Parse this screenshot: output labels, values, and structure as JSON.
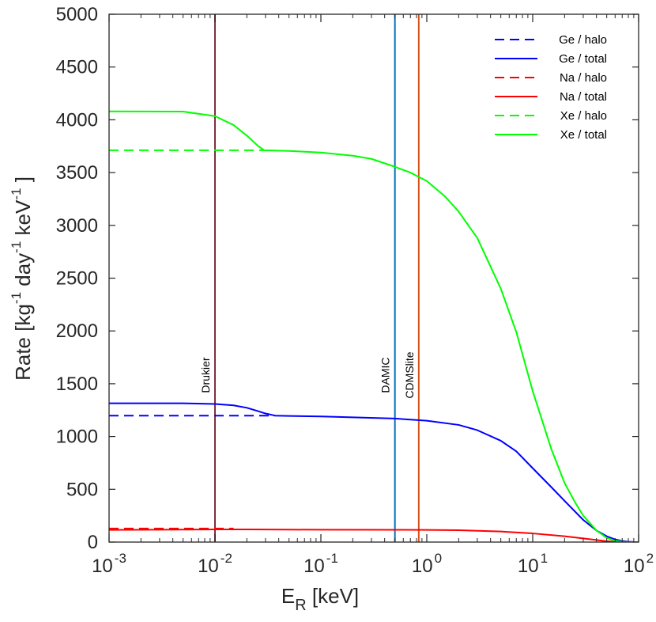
{
  "chart_data": {
    "type": "line",
    "xscale": "log",
    "xlim": [
      0.001,
      100
    ],
    "ylim": [
      0,
      5000
    ],
    "yticks": [
      0,
      500,
      1000,
      1500,
      2000,
      2500,
      3000,
      3500,
      4000,
      4500,
      5000
    ],
    "ytick_labels": [
      "0",
      "500",
      "1000",
      "1500",
      "2000",
      "2500",
      "3000",
      "3500",
      "4000",
      "4500",
      "5000"
    ],
    "xticks": [
      {
        "base": "10",
        "exp": "-3",
        "value": 0.001
      },
      {
        "base": "10",
        "exp": "-2",
        "value": 0.01
      },
      {
        "base": "10",
        "exp": "-1",
        "value": 0.1
      },
      {
        "base": "10",
        "exp": "0",
        "value": 1
      },
      {
        "base": "10",
        "exp": "1",
        "value": 10
      },
      {
        "base": "10",
        "exp": "2",
        "value": 100
      }
    ],
    "xlabel": {
      "main": "E",
      "sub": "R",
      "rest": " [keV]"
    },
    "ylabel": {
      "p1": "Rate [kg",
      "e1": "-1",
      "p2": " day",
      "e2": "-1",
      "p3": " keV",
      "e3": "-1",
      "p4": " ]"
    },
    "vlines": [
      {
        "label": "Drukier",
        "x": 0.01,
        "color": "#7E2F3E"
      },
      {
        "label": "DAMIC",
        "x": 0.5,
        "color": "#0072BD"
      },
      {
        "label": "CDMSlite",
        "x": 0.84,
        "color": "#D95319"
      }
    ],
    "series": [
      {
        "name": "Ge / halo",
        "color": "#0000FF",
        "dashed": true,
        "x": [
          0.001,
          0.02,
          0.037
        ],
        "y": [
          1198,
          1198,
          1198
        ]
      },
      {
        "name": "Ge / total",
        "color": "#0000FF",
        "dashed": false,
        "x": [
          0.001,
          0.005,
          0.01,
          0.015,
          0.02,
          0.025,
          0.03,
          0.037,
          0.05,
          0.1,
          0.2,
          0.5,
          1,
          2,
          3,
          5,
          7,
          10,
          15,
          20,
          30,
          40,
          50,
          60,
          70,
          80,
          90,
          100
        ],
        "y": [
          1315,
          1315,
          1308,
          1295,
          1272,
          1243,
          1218,
          1198,
          1195,
          1190,
          1182,
          1170,
          1150,
          1110,
          1060,
          960,
          860,
          700,
          520,
          390,
          210,
          110,
          55,
          25,
          10,
          4,
          1,
          0
        ]
      },
      {
        "name": "Na / halo",
        "color": "#FF0000",
        "dashed": true,
        "x": [
          0.001,
          0.01,
          0.015
        ],
        "y": [
          128,
          128,
          128
        ]
      },
      {
        "name": "Na / total",
        "color": "#FF0000",
        "dashed": false,
        "x": [
          0.001,
          0.01,
          0.02,
          0.05,
          0.1,
          0.5,
          1,
          2,
          5,
          10,
          20,
          30,
          40,
          50,
          60,
          70,
          100
        ],
        "y": [
          115,
          120,
          120,
          118,
          117,
          116,
          115,
          112,
          100,
          82,
          55,
          35,
          20,
          8,
          3,
          1,
          0
        ]
      },
      {
        "name": "Xe / halo",
        "color": "#00FF00",
        "dashed": true,
        "x": [
          0.001,
          0.02,
          0.029
        ],
        "y": [
          3712,
          3712,
          3712
        ]
      },
      {
        "name": "Xe / total",
        "color": "#00FF00",
        "dashed": false,
        "x": [
          0.001,
          0.005,
          0.01,
          0.015,
          0.02,
          0.025,
          0.029,
          0.05,
          0.1,
          0.2,
          0.3,
          0.5,
          0.7,
          1,
          1.5,
          2,
          3,
          5,
          7,
          10,
          15,
          20,
          25,
          30,
          40,
          50,
          60,
          70,
          80,
          100
        ],
        "y": [
          4080,
          4078,
          4035,
          3950,
          3850,
          3760,
          3712,
          3705,
          3690,
          3660,
          3630,
          3555,
          3500,
          3420,
          3270,
          3130,
          2880,
          2400,
          1990,
          1430,
          880,
          560,
          380,
          250,
          110,
          40,
          12,
          3,
          1,
          0
        ]
      }
    ]
  }
}
